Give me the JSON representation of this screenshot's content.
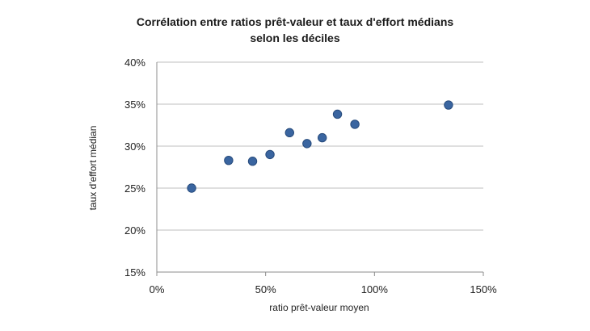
{
  "chart_data": {
    "type": "scatter",
    "title_lines": [
      "Corrélation entre ratios prêt-valeur et taux d'effort médians",
      "selon les déciles"
    ],
    "xlabel": "ratio prêt-valeur moyen",
    "ylabel": "taux d'effort médian",
    "xlim": [
      0,
      1.5
    ],
    "ylim": [
      0.15,
      0.4
    ],
    "x_ticks": [
      0,
      0.5,
      1.0,
      1.5
    ],
    "x_tick_labels": [
      "0%",
      "50%",
      "100%",
      "150%"
    ],
    "y_ticks": [
      0.15,
      0.2,
      0.25,
      0.3,
      0.35,
      0.4
    ],
    "y_tick_labels": [
      "15%",
      "20%",
      "25%",
      "30%",
      "35%",
      "40%"
    ],
    "grid": "horizontal",
    "legend": "none",
    "marker_color": "#3a65a0",
    "marker_edge_color": "#274b7c",
    "gridline_color": "#bfbfbf",
    "points": [
      {
        "x": 0.16,
        "y": 0.25
      },
      {
        "x": 0.33,
        "y": 0.283
      },
      {
        "x": 0.44,
        "y": 0.282
      },
      {
        "x": 0.52,
        "y": 0.29
      },
      {
        "x": 0.61,
        "y": 0.316
      },
      {
        "x": 0.69,
        "y": 0.303
      },
      {
        "x": 0.76,
        "y": 0.31
      },
      {
        "x": 0.83,
        "y": 0.338
      },
      {
        "x": 0.91,
        "y": 0.326
      },
      {
        "x": 1.34,
        "y": 0.349
      }
    ]
  }
}
